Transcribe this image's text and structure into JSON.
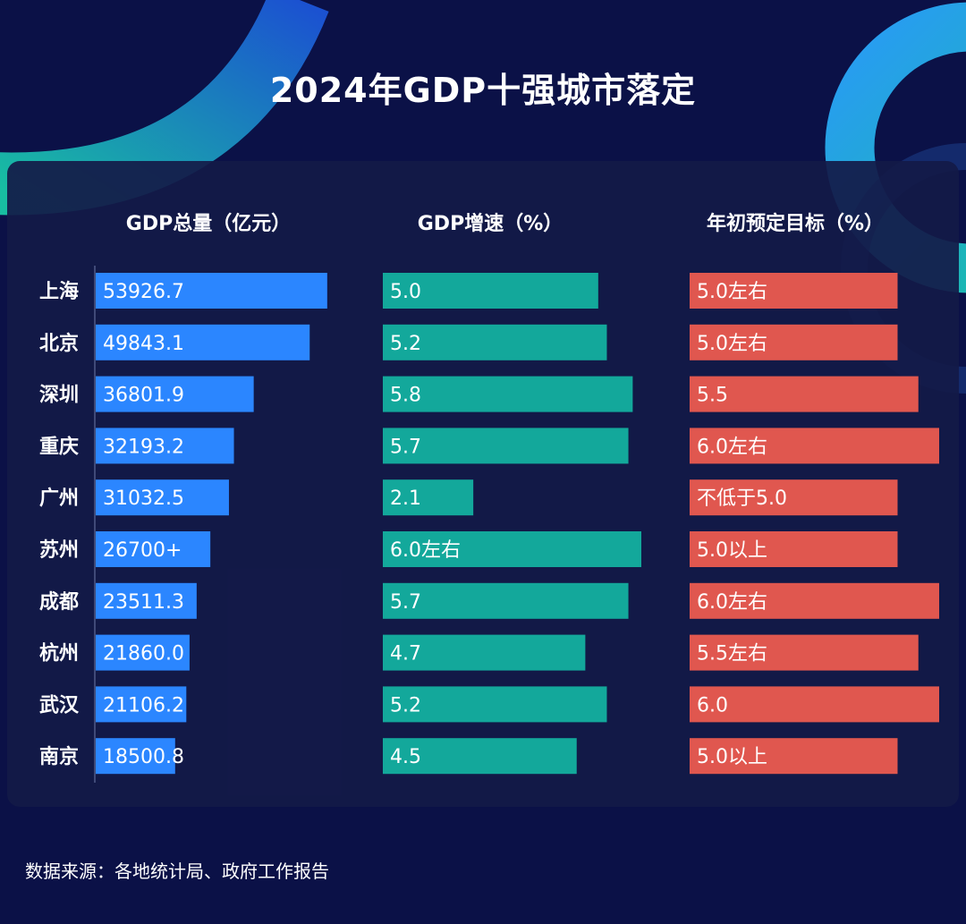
{
  "title": "2024年GDP十强城市落定",
  "source_note": "数据来源：各地统计局、政府工作报告",
  "colors": {
    "background": "#0b1147",
    "panel": "#141a48",
    "gdp_bar": "#2b86ff",
    "growth_bar": "#13a89b",
    "target_bar": "#e0574f",
    "text": "#ffffff"
  },
  "chart_data": {
    "type": "bar",
    "orientation": "horizontal",
    "grid": false,
    "categories": [
      "上海",
      "北京",
      "深圳",
      "重庆",
      "广州",
      "苏州",
      "成都",
      "杭州",
      "武汉",
      "南京"
    ],
    "panels": [
      {
        "header": "GDP总量（亿元）",
        "values": [
          53926.7,
          49843.1,
          36801.9,
          32193.2,
          31032.5,
          26700,
          23511.3,
          21860.0,
          21106.2,
          18500.8
        ],
        "labels": [
          "53926.7",
          "49843.1",
          "36801.9",
          "32193.2",
          "31032.5",
          "26700+",
          "23511.3",
          "21860.0",
          "21106.2",
          "18500.8"
        ],
        "xlim": [
          0,
          60000
        ]
      },
      {
        "header": "GDP增速（%）",
        "values": [
          5.0,
          5.2,
          5.8,
          5.7,
          2.1,
          6.0,
          5.7,
          4.7,
          5.2,
          4.5
        ],
        "labels": [
          "5.0",
          "5.2",
          "5.8",
          "5.7",
          "2.1",
          "6.0左右",
          "5.7",
          "4.7",
          "5.2",
          "4.5"
        ],
        "xlim": [
          0,
          6.0
        ]
      },
      {
        "header": "年初预定目标（%）",
        "values": [
          5.0,
          5.0,
          5.5,
          6.0,
          5.0,
          5.0,
          6.0,
          5.5,
          6.0,
          5.0
        ],
        "labels": [
          "5.0左右",
          "5.0左右",
          "5.5",
          "6.0左右",
          "不低于5.0",
          "5.0以上",
          "6.0左右",
          "5.5左右",
          "6.0",
          "5.0以上"
        ],
        "xlim": [
          0,
          6.0
        ]
      }
    ]
  }
}
